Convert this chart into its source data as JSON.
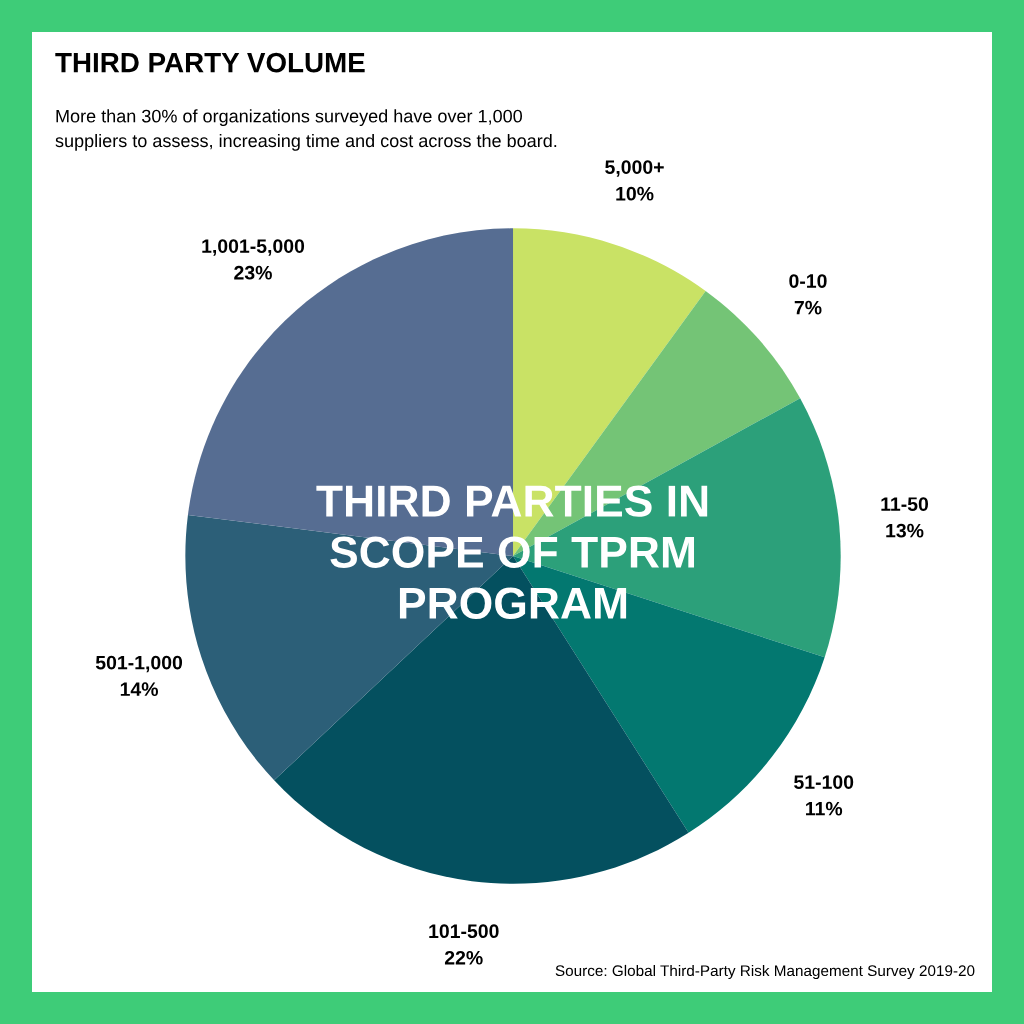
{
  "chart_data": {
    "type": "pie",
    "title": "THIRD PARTY VOLUME",
    "subtitle": "More than 30% of organizations surveyed have over 1,000\nsuppliers to assess, increasing time and cost across the board.",
    "categories": [
      "5,000+",
      "0-10",
      "11-50",
      "51-100",
      "101-500",
      "501-1,000",
      "1,001-5,000"
    ],
    "values": [
      10,
      7,
      13,
      11,
      22,
      14,
      23
    ],
    "value_labels": [
      "10%",
      "7%",
      "13%",
      "11%",
      "22%",
      "14%",
      "23%"
    ],
    "colors": [
      "#c9e265",
      "#74c476",
      "#2ca07a",
      "#037870",
      "#04505f",
      "#2c5f78",
      "#566d92"
    ],
    "annotations": [
      "THIRD PARTIES IN\nSCOPE OF TPRM\nPROGRAM",
      "Source: Global Third-Party Risk Management Survey 2019-20"
    ],
    "legend": false
  }
}
